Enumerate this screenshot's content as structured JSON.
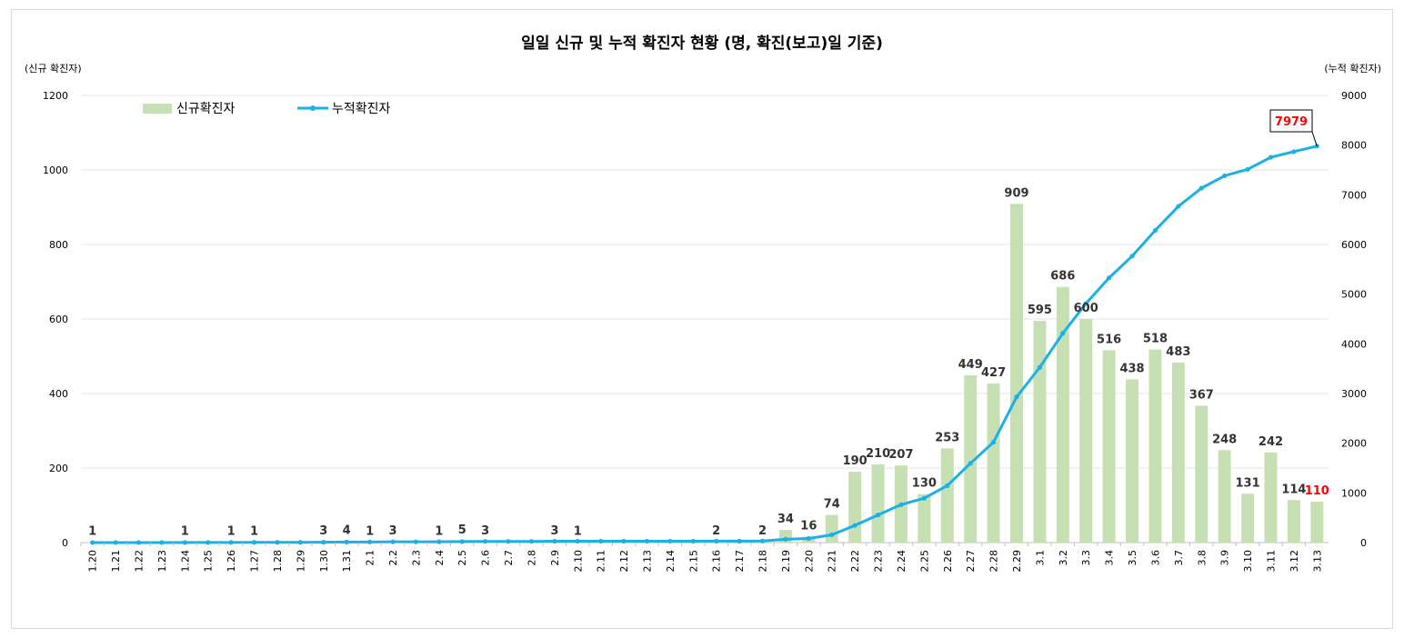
{
  "chart_data": {
    "type": "bar+line",
    "title": "일일 신규 및 누적 확진자 현황 (명, 확진(보고)일 기준)",
    "y_left_label": "(신규 확진자)",
    "y_right_label": "(누적 확진자)",
    "y_left_range": [
      0,
      1200
    ],
    "y_left_ticks": [
      0,
      200,
      400,
      600,
      800,
      1000,
      1200
    ],
    "y_right_range": [
      0,
      9000
    ],
    "y_right_ticks": [
      0,
      1000,
      2000,
      3000,
      4000,
      5000,
      6000,
      7000,
      8000,
      9000
    ],
    "grid": true,
    "legend_position": "top-left",
    "categories": [
      "1.20",
      "1.21",
      "1.22",
      "1.23",
      "1.24",
      "1.25",
      "1.26",
      "1.27",
      "1.28",
      "1.29",
      "1.30",
      "1.31",
      "2.1",
      "2.2",
      "2.3",
      "2.4",
      "2.5",
      "2.6",
      "2.7",
      "2.8",
      "2.9",
      "2.10",
      "2.11",
      "2.12",
      "2.13",
      "2.14",
      "2.15",
      "2.16",
      "2.17",
      "2.18",
      "2.19",
      "2.20",
      "2.21",
      "2.22",
      "2.23",
      "2.24",
      "2.25",
      "2.26",
      "2.27",
      "2.28",
      "2.29",
      "3.1",
      "3.2",
      "3.3",
      "3.4",
      "3.5",
      "3.6",
      "3.7",
      "3.8",
      "3.9",
      "3.10",
      "3.11",
      "3.12",
      "3.13"
    ],
    "series": [
      {
        "name": "신규확진자",
        "kind": "bar",
        "axis": "left",
        "color": "#c6e0b4",
        "values": [
          1,
          0,
          0,
          0,
          1,
          0,
          1,
          1,
          0,
          0,
          3,
          4,
          1,
          3,
          0,
          1,
          5,
          3,
          0,
          0,
          3,
          1,
          0,
          0,
          0,
          0,
          0,
          2,
          0,
          2,
          34,
          16,
          74,
          190,
          210,
          207,
          130,
          253,
          449,
          427,
          909,
          595,
          686,
          600,
          516,
          438,
          518,
          483,
          367,
          248,
          131,
          242,
          114,
          110
        ],
        "labels": [
          "1",
          "",
          "",
          "",
          "1",
          "",
          "1",
          "1",
          "",
          "",
          "3",
          "4",
          "1",
          "3",
          "",
          "1",
          "5",
          "3",
          "",
          "",
          "3",
          "1",
          "",
          "",
          "",
          "",
          "",
          "2",
          "",
          "2",
          "34",
          "16",
          "74",
          "190",
          "210",
          "207",
          "130",
          "253",
          "449",
          "427",
          "909",
          "595",
          "686",
          "600",
          "516",
          "438",
          "518",
          "483",
          "367",
          "248",
          "131",
          "242",
          "114",
          "110"
        ]
      },
      {
        "name": "누적확진자",
        "kind": "line",
        "axis": "right",
        "color": "#1bb0e6",
        "values": [
          1,
          1,
          1,
          1,
          2,
          2,
          3,
          4,
          4,
          4,
          7,
          11,
          12,
          15,
          15,
          16,
          21,
          24,
          24,
          24,
          27,
          28,
          28,
          28,
          28,
          28,
          28,
          30,
          30,
          32,
          66,
          82,
          156,
          346,
          556,
          763,
          893,
          1146,
          1595,
          2022,
          2931,
          3526,
          4212,
          4812,
          5328,
          5766,
          6284,
          6767,
          7134,
          7382,
          7513,
          7755,
          7869,
          7979
        ]
      }
    ],
    "highlight": {
      "bar_label_color": "#ff0000",
      "bar_index": 53,
      "callout_text": "7979",
      "callout_index": 53
    }
  }
}
